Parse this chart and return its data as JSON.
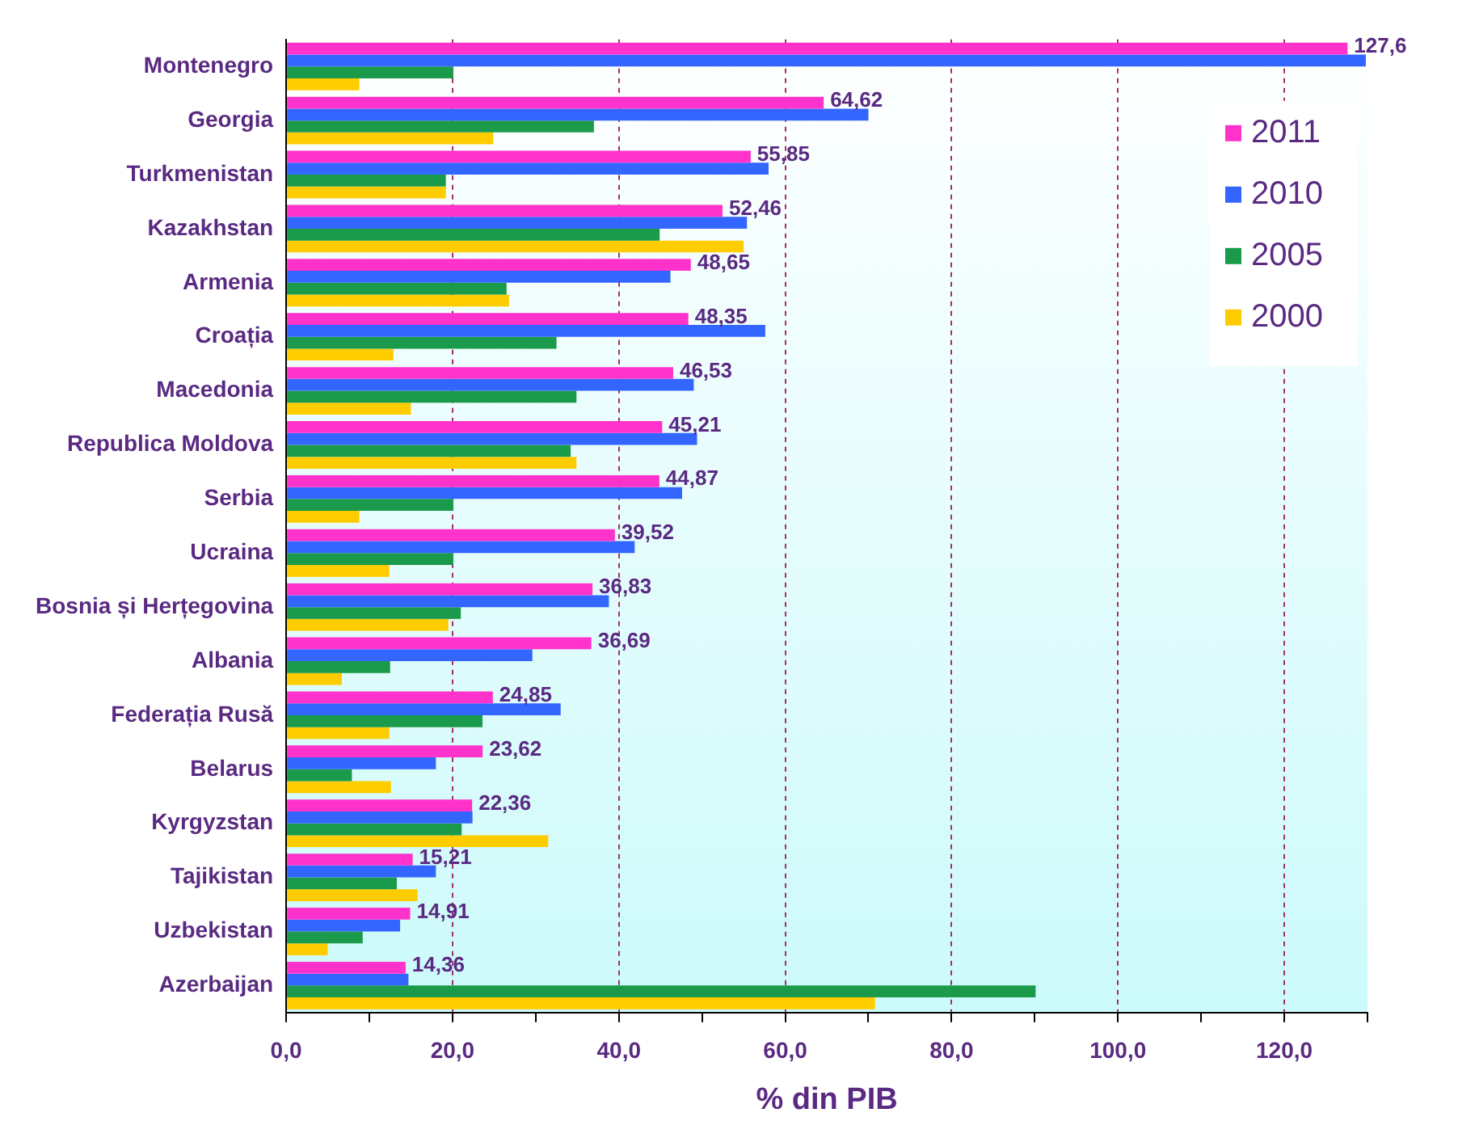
{
  "chart_data": {
    "type": "bar",
    "orientation": "horizontal",
    "xlabel": "% din PIB",
    "categories": [
      "Montenegro",
      "Georgia",
      "Turkmenistan",
      "Kazakhstan",
      "Armenia",
      "Croația",
      "Macedonia",
      "Republica Moldova",
      "Serbia",
      "Ucraina",
      "Bosnia și Herțegovina",
      "Albania",
      "Federația Rusă",
      "Belarus",
      "Kyrgyzstan",
      "Tajikistan",
      "Uzbekistan",
      "Azerbaijan"
    ],
    "series": [
      {
        "name": "2011",
        "color": "#ff33cc",
        "values": [
          127.6,
          64.62,
          55.85,
          52.46,
          48.65,
          48.35,
          46.53,
          45.21,
          44.87,
          39.52,
          36.83,
          36.69,
          24.85,
          23.62,
          22.36,
          15.21,
          14.91,
          14.36
        ],
        "value_labels": [
          "127,6",
          "64,62",
          "55,85",
          "52,46",
          "48,65",
          "48,35",
          "46,53",
          "45,21",
          "44,87",
          "39,52",
          "36,83",
          "36,69",
          "24,85",
          "23,62",
          "22,36",
          "15,21",
          "14,91",
          "14,36"
        ]
      },
      {
        "name": "2010",
        "color": "#3366ff",
        "values": [
          129.8,
          70.0,
          58.0,
          55.4,
          46.2,
          57.6,
          49.0,
          49.4,
          47.6,
          41.9,
          38.8,
          29.6,
          33.0,
          18.0,
          22.4,
          18.0,
          13.7,
          14.7
        ]
      },
      {
        "name": "2005",
        "color": "#1a9a4a",
        "values": [
          20.1,
          37.0,
          19.2,
          44.9,
          26.5,
          32.5,
          34.9,
          34.2,
          20.1,
          20.1,
          21.0,
          12.5,
          23.6,
          7.9,
          21.1,
          13.3,
          9.2,
          90.1
        ]
      },
      {
        "name": "2000",
        "color": "#ffcc00",
        "values": [
          8.8,
          24.9,
          19.2,
          55.0,
          26.8,
          12.9,
          15.0,
          34.9,
          8.8,
          12.4,
          19.5,
          6.7,
          12.4,
          12.6,
          31.5,
          15.8,
          5.0,
          70.8
        ]
      }
    ],
    "xlim": [
      0,
      130
    ],
    "xticks": [
      {
        "value": 0,
        "label": "0,0"
      },
      {
        "value": 10,
        "label": null
      },
      {
        "value": 20,
        "label": "20,0"
      },
      {
        "value": 30,
        "label": null
      },
      {
        "value": 40,
        "label": "40,0"
      },
      {
        "value": 50,
        "label": null
      },
      {
        "value": 60,
        "label": "60,0"
      },
      {
        "value": 70,
        "label": null
      },
      {
        "value": 80,
        "label": "80,0"
      },
      {
        "value": 90,
        "label": null
      },
      {
        "value": 100,
        "label": "100,0"
      },
      {
        "value": 110,
        "label": null
      },
      {
        "value": 120,
        "label": "120,0"
      },
      {
        "value": 130,
        "label": null
      }
    ],
    "grid": "x",
    "legend": "top right"
  }
}
